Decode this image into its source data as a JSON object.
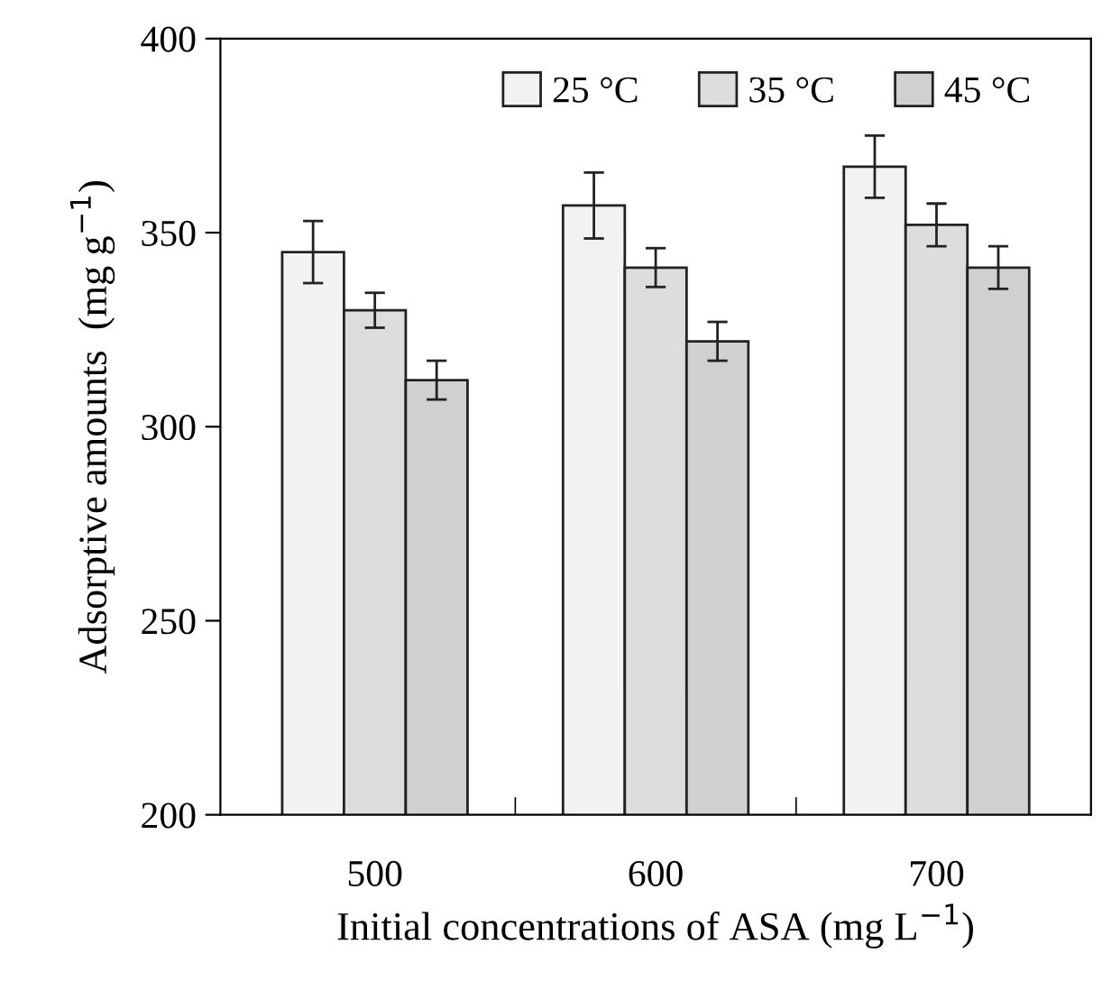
{
  "chart_data": {
    "type": "bar",
    "xlabel": "Initial concentrations of ASA (mg L$^{−1}$)",
    "ylabel": "Adsorptive amounts  (mg g$^{−1}$)",
    "categories": [
      "500",
      "600",
      "700"
    ],
    "series": [
      {
        "name": "25 °C",
        "color": "#f2f2f2",
        "values": [
          345,
          357,
          367
        ],
        "errors": [
          8,
          8.5,
          8
        ]
      },
      {
        "name": "35 °C",
        "color": "#dddddd",
        "values": [
          330,
          341,
          352
        ],
        "errors": [
          4.5,
          5,
          5.5
        ]
      },
      {
        "name": "45 °C",
        "color": "#d0d0d0",
        "values": [
          312,
          322,
          341
        ],
        "errors": [
          5,
          5,
          5.5
        ]
      }
    ],
    "ylim": [
      200,
      400
    ],
    "yticks": [
      200,
      250,
      300,
      350,
      400
    ],
    "grid": false,
    "legend": "top right"
  }
}
